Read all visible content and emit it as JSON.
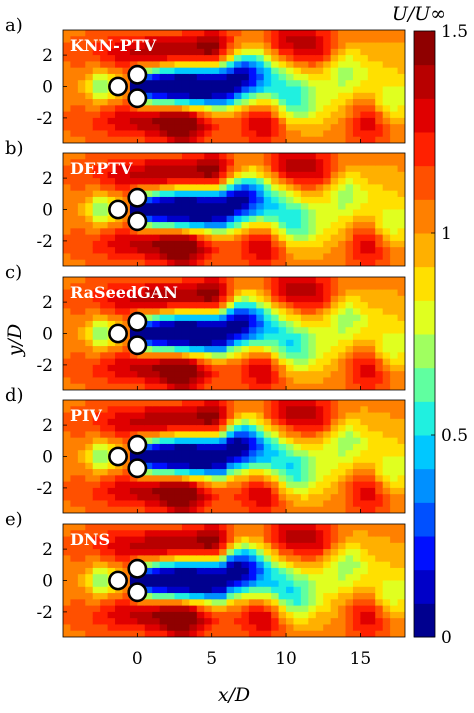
{
  "chart_data": {
    "type": "heatmap",
    "colorbar": {
      "label": "U/U∞",
      "ticks": [
        0,
        0.5,
        1,
        1.5
      ],
      "tick_labels": [
        "0",
        "0.5",
        "1",
        "1.5"
      ],
      "range": [
        0,
        1.5
      ],
      "levels": 20,
      "colormap": "jet"
    },
    "xlabel": "x/D",
    "ylabel": "y/D",
    "xlim": [
      -5,
      18
    ],
    "ylim": [
      -3.6,
      3.6
    ],
    "xticks": [
      0,
      5,
      10,
      15
    ],
    "xtick_labels": [
      "0",
      "5",
      "10",
      "15"
    ],
    "yticks": [
      2,
      0,
      -2
    ],
    "ytick_labels": [
      "2",
      "0",
      "-2"
    ],
    "panels": [
      {
        "letter": "a)",
        "method": "KNN-PTV"
      },
      {
        "letter": "b)",
        "method": "DEPTV"
      },
      {
        "letter": "c)",
        "method": "RaSeedGAN"
      },
      {
        "letter": "d)",
        "method": "PIV"
      },
      {
        "letter": "e)",
        "method": "DNS"
      }
    ],
    "cylinders": [
      {
        "x": -1.3,
        "y": 0
      },
      {
        "x": 0,
        "y": 0.75
      },
      {
        "x": 0,
        "y": -0.75
      }
    ],
    "cylinder_diameter": 1
  },
  "colors": {
    "jet": [
      "#00008f",
      "#0000c8",
      "#0010ff",
      "#0050ff",
      "#0090ff",
      "#00c8ff",
      "#20f0e0",
      "#60ffa0",
      "#a0ff60",
      "#e0ff20",
      "#ffe000",
      "#ffb000",
      "#ff8000",
      "#ff5000",
      "#ff2000",
      "#e00000",
      "#b80000",
      "#8f0000"
    ],
    "axis": "#000000",
    "label_text": "#ffffff"
  }
}
